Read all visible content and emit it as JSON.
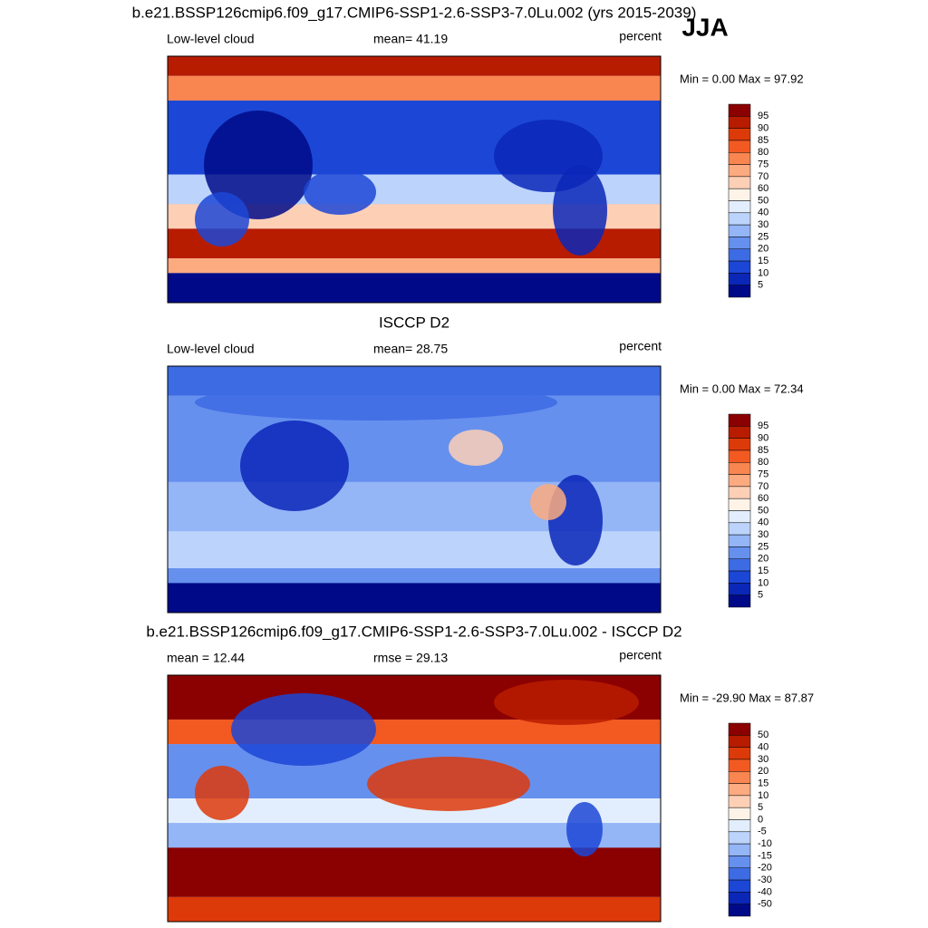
{
  "season": "JJA",
  "palette": [
    "#8b0000",
    "#b81c00",
    "#dd3a0a",
    "#f25a22",
    "#f98550",
    "#fcaa80",
    "#fdd0b6",
    "#fff3e8",
    "#e2eefd",
    "#bcd4fb",
    "#94b5f6",
    "#6690ee",
    "#3d6be3",
    "#1c47d6",
    "#0b27b8",
    "#000a88"
  ],
  "panels": [
    {
      "title": "b.e21.BSSP126cmip6.f09_g17.CMIP6-SSP1-2.6-SSP3-7.0Lu.002 (yrs 2015-2039)",
      "left": "Low-level cloud",
      "center": "mean=  41.19",
      "right": "percent",
      "minmax": "Min =   0.00 Max =  97.92",
      "levels": [
        95,
        90,
        85,
        80,
        75,
        70,
        60,
        50,
        40,
        30,
        25,
        20,
        15,
        10,
        5
      ]
    },
    {
      "title": "ISCCP D2",
      "left": "Low-level cloud",
      "center": "mean=  28.75",
      "right": "percent",
      "minmax": "Min =   0.00 Max =  72.34",
      "levels": [
        95,
        90,
        85,
        80,
        75,
        70,
        60,
        50,
        40,
        30,
        25,
        20,
        15,
        10,
        5
      ]
    },
    {
      "title": "b.e21.BSSP126cmip6.f09_g17.CMIP6-SSP1-2.6-SSP3-7.0Lu.002 - ISCCP D2",
      "left": "mean =  12.44",
      "center": "rmse =  29.13",
      "right": "percent",
      "minmax": "Min = -29.90 Max =  87.87",
      "levels": [
        50,
        40,
        30,
        20,
        15,
        10,
        5,
        0,
        -5,
        -10,
        -15,
        -20,
        -30,
        -40,
        -50
      ]
    }
  ]
}
